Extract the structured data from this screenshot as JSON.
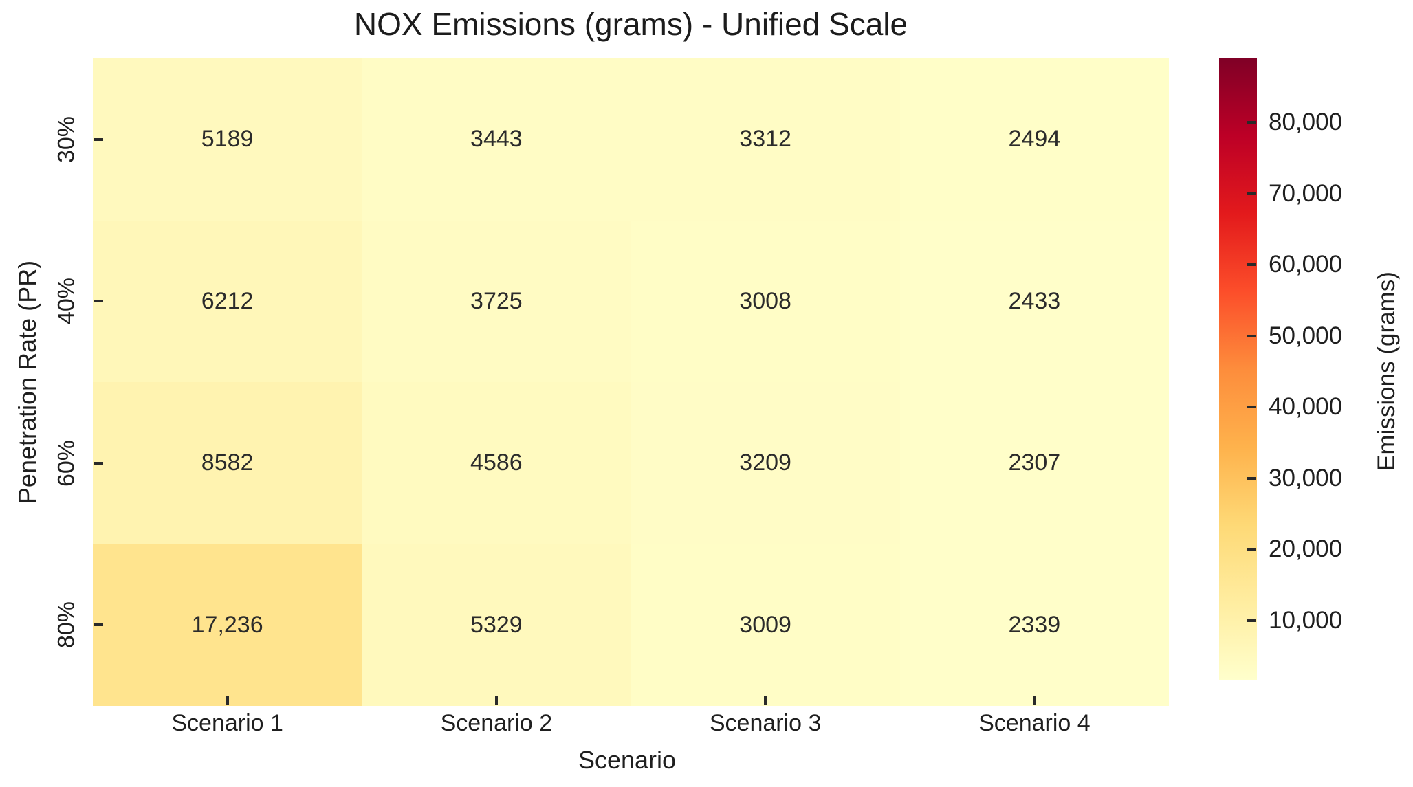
{
  "figure": {
    "title": "NOX Emissions (grams) - Unified Scale",
    "xlabel": "Scenario",
    "ylabel": "Penetration Rate (PR)",
    "colorbar_label": "Emissions (grams)"
  },
  "chart_data": {
    "type": "heatmap",
    "title": "NOX Emissions (grams) - Unified Scale",
    "xlabel": "Scenario",
    "ylabel": "Penetration Rate (PR)",
    "categories": [
      "Scenario 1",
      "Scenario 2",
      "Scenario 3",
      "Scenario 4"
    ],
    "rows": [
      "30%",
      "40%",
      "60%",
      "80%"
    ],
    "values": [
      [
        5189,
        3443,
        3312,
        2494
      ],
      [
        6212,
        3725,
        3008,
        2433
      ],
      [
        8582,
        4586,
        3209,
        2307
      ],
      [
        17236,
        5329,
        3009,
        2339
      ]
    ],
    "cell_labels": [
      [
        "5189",
        "3443",
        "3312",
        "2494"
      ],
      [
        "6212",
        "3725",
        "3008",
        "2433"
      ],
      [
        "8582",
        "4586",
        "3209",
        "2307"
      ],
      [
        "17,236",
        "5329",
        "3009",
        "2339"
      ]
    ],
    "colormap": "YlOrRd",
    "colormap_stops": [
      "#ffffcc",
      "#ffeda0",
      "#fed976",
      "#feb24c",
      "#fd8d3c",
      "#fc4e2a",
      "#e31a1c",
      "#bd0026",
      "#800026"
    ],
    "vmin": 1600,
    "vmax": 89000,
    "grid": false,
    "colorbar": {
      "label": "Emissions (grams)",
      "position": "right",
      "ticks": [
        10000,
        20000,
        30000,
        40000,
        50000,
        60000,
        70000,
        80000
      ],
      "tick_labels": [
        "10,000",
        "20,000",
        "30,000",
        "40,000",
        "50,000",
        "60,000",
        "70,000",
        "80,000"
      ]
    }
  }
}
